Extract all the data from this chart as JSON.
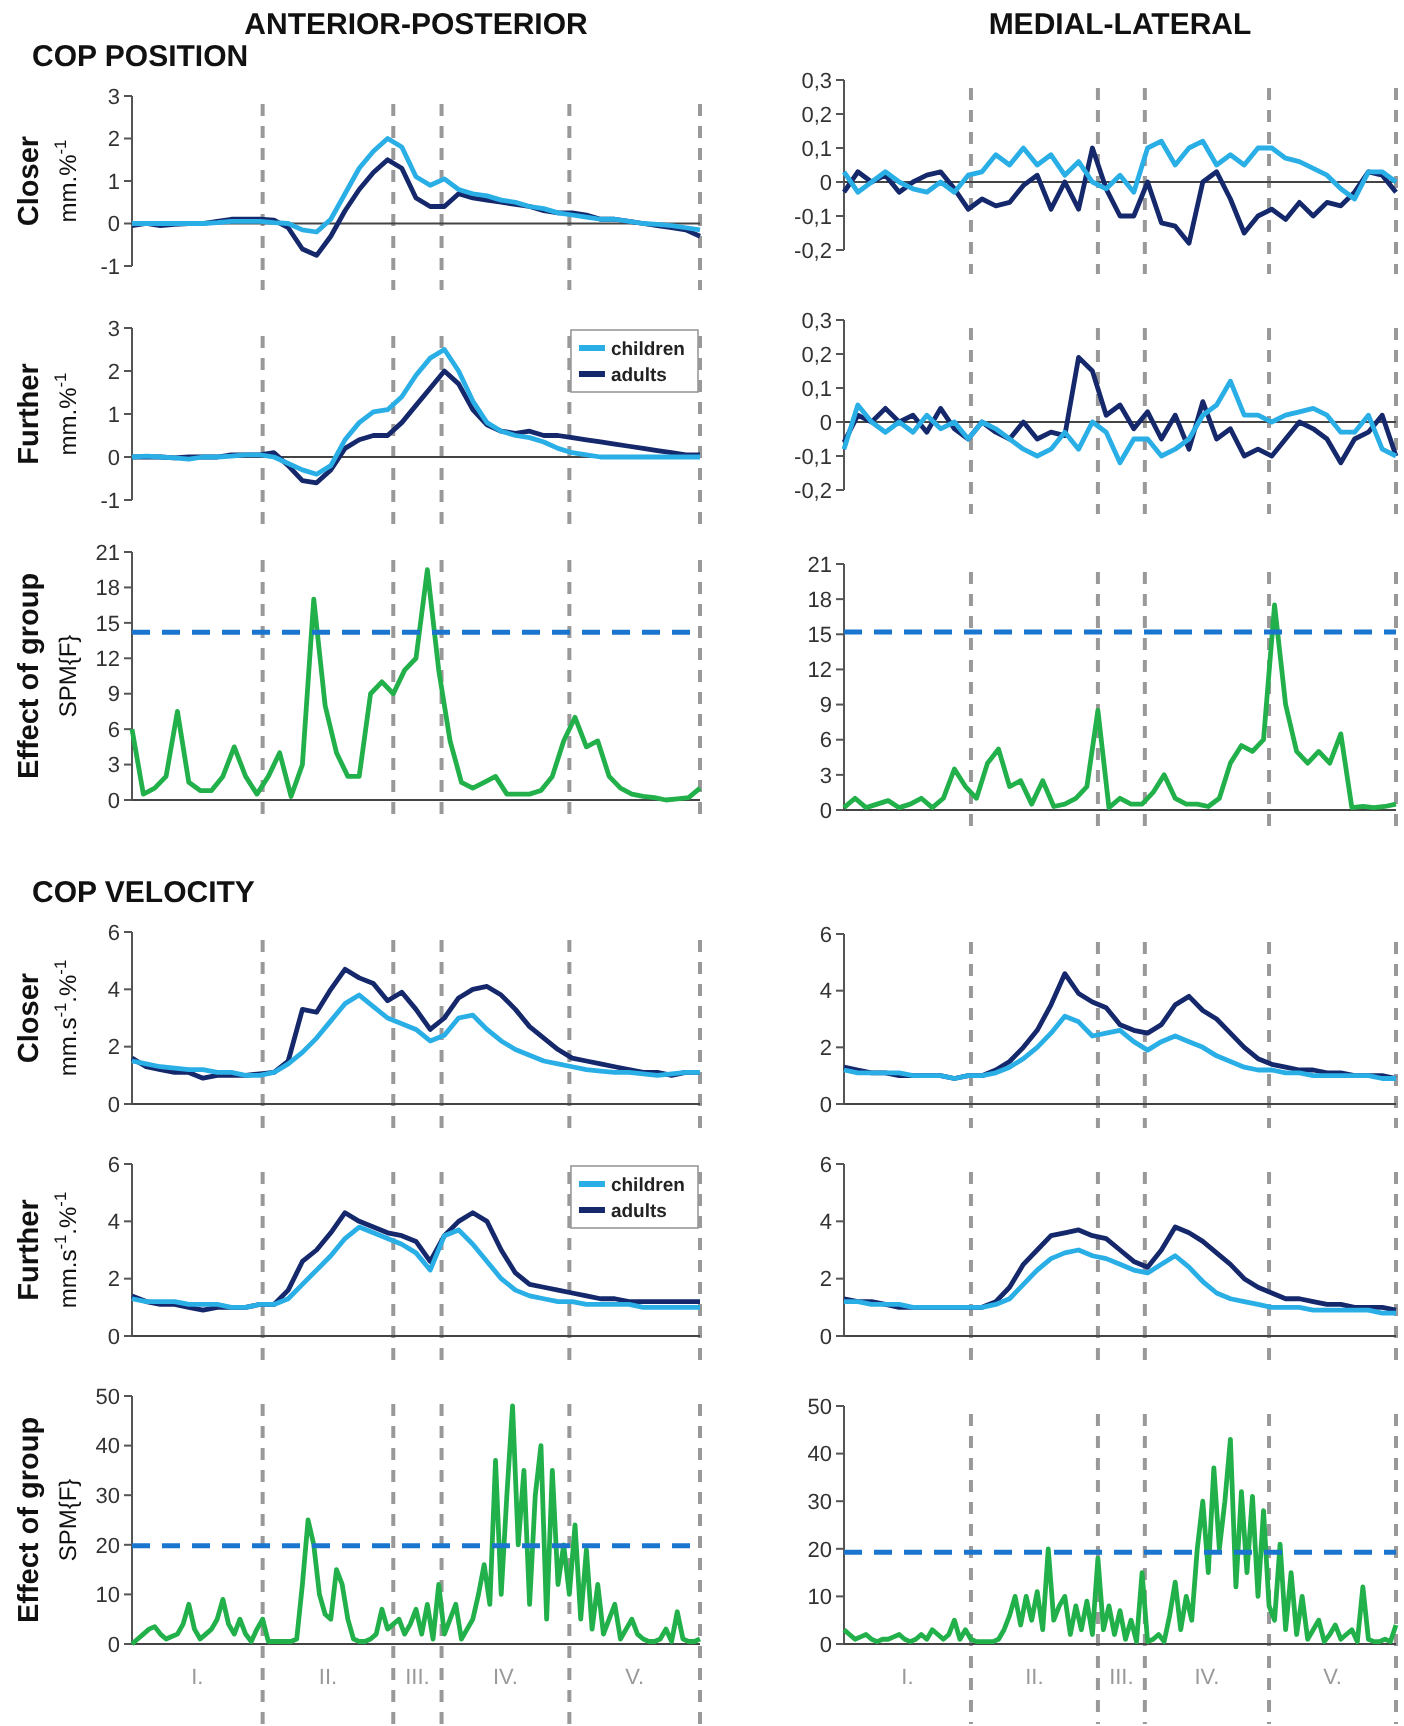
{
  "chart_data": [
    {
      "type": "line",
      "title": "ANTERIOR-POSTERIOR",
      "subtitle": "COP POSITION",
      "ylabel": "Closer\nmm.%$^{-1}$",
      "ylim": [
        -1,
        3
      ],
      "yticks": [
        -1,
        0,
        1,
        2,
        3
      ],
      "tick_labels": "y",
      "grid": "x",
      "categories": [
        null,
        null,
        null,
        null,
        null,
        null,
        null,
        null,
        null,
        null,
        null,
        null,
        null,
        null,
        null,
        null,
        null,
        null,
        null,
        null,
        null,
        null,
        null,
        null,
        null,
        null,
        null,
        null,
        null,
        null,
        null,
        null,
        null,
        null,
        null,
        null,
        null,
        null,
        null,
        null,
        null
      ],
      "series": [
        {
          "color": "#29aee6",
          "values": [
            0,
            0,
            0,
            0,
            0,
            0,
            0.02,
            0.05,
            0.05,
            0.05,
            0.02,
            0,
            -0.15,
            -0.2,
            0.1,
            0.7,
            1.3,
            1.7,
            2.0,
            1.8,
            1.1,
            0.9,
            1.05,
            0.8,
            0.7,
            0.65,
            0.55,
            0.5,
            0.4,
            0.35,
            0.25,
            0.2,
            0.15,
            0.1,
            0.1,
            0.05,
            0,
            -0.02,
            -0.05,
            -0.1,
            -0.15
          ]
        },
        {
          "color": "#14286b",
          "values": [
            -0.05,
            0,
            -0.05,
            -0.02,
            0,
            0,
            0.05,
            0.1,
            0.1,
            0.1,
            0.08,
            -0.1,
            -0.6,
            -0.75,
            -0.3,
            0.3,
            0.8,
            1.2,
            1.5,
            1.3,
            0.6,
            0.4,
            0.4,
            0.7,
            0.6,
            0.55,
            0.5,
            0.45,
            0.4,
            0.3,
            0.25,
            0.25,
            0.2,
            0.1,
            0.1,
            0.05,
            0,
            -0.05,
            -0.1,
            -0.15,
            -0.3
          ]
        }
      ]
    },
    {
      "type": "line",
      "title": "MEDIAL-LATERAL",
      "ylim": [
        -0.2,
        0.3
      ],
      "yticks": [
        {
          "value": -0.2,
          "label": "-0,2"
        },
        {
          "value": -0.1,
          "label": "-0,1"
        },
        0,
        {
          "value": 0.1,
          "label": "0,1"
        },
        {
          "value": 0.2,
          "label": "0,2"
        },
        {
          "value": 0.3,
          "label": "0,3"
        }
      ],
      "tick_labels": "y",
      "grid": "x",
      "categories": [
        null,
        null,
        null,
        null,
        null,
        null,
        null,
        null,
        null,
        null,
        null,
        null,
        null,
        null,
        null,
        null,
        null,
        null,
        null,
        null,
        null,
        null,
        null,
        null,
        null,
        null,
        null,
        null,
        null,
        null,
        null,
        null,
        null,
        null,
        null,
        null,
        null,
        null,
        null,
        null,
        null
      ],
      "series": [
        {
          "color": "#29aee6",
          "values": [
            0.03,
            -0.03,
            0,
            0.03,
            0,
            -0.02,
            -0.03,
            0,
            -0.03,
            0.02,
            0.03,
            0.08,
            0.05,
            0.1,
            0.05,
            0.08,
            0.02,
            0.06,
            0,
            -0.02,
            0.02,
            -0.03,
            0.1,
            0.12,
            0.05,
            0.1,
            0.12,
            0.05,
            0.08,
            0.05,
            0.1,
            0.1,
            0.07,
            0.06,
            0.04,
            0.02,
            -0.02,
            -0.05,
            0.03,
            0.03,
            0
          ]
        },
        {
          "color": "#14286b",
          "values": [
            -0.03,
            0.03,
            0,
            0.02,
            -0.03,
            0,
            0.02,
            0.03,
            -0.02,
            -0.08,
            -0.05,
            -0.07,
            -0.06,
            -0.01,
            0.02,
            -0.08,
            0,
            -0.08,
            0.1,
            -0.02,
            -0.1,
            -0.1,
            0,
            -0.12,
            -0.13,
            -0.18,
            0,
            0.03,
            -0.05,
            -0.15,
            -0.1,
            -0.08,
            -0.11,
            -0.06,
            -0.1,
            -0.06,
            -0.07,
            -0.03,
            0.03,
            0.02,
            -0.03
          ]
        }
      ]
    },
    {
      "type": "line",
      "ylabel": "Further\nmm.%$^{-1}$",
      "legend": "top right",
      "ylim": [
        -1,
        3
      ],
      "yticks": [
        -1,
        0,
        1,
        2,
        3
      ],
      "tick_labels": "y",
      "grid": "x",
      "categories": [
        null,
        null,
        null,
        null,
        null,
        null,
        null,
        null,
        null,
        null,
        null,
        null,
        null,
        null,
        null,
        null,
        null,
        null,
        null,
        null,
        null,
        null,
        null,
        null,
        null,
        null,
        null,
        null,
        null,
        null,
        null,
        null,
        null,
        null,
        null,
        null,
        null,
        null,
        null,
        null,
        null
      ],
      "series": [
        {
          "name": "children",
          "color": "#29aee6",
          "values": [
            0,
            0.02,
            0,
            -0.02,
            -0.05,
            0,
            0,
            0.02,
            0.05,
            0.05,
            0,
            -0.15,
            -0.3,
            -0.4,
            -0.2,
            0.4,
            0.8,
            1.05,
            1.1,
            1.4,
            1.9,
            2.3,
            2.5,
            2.0,
            1.3,
            0.8,
            0.6,
            0.5,
            0.45,
            0.35,
            0.2,
            0.1,
            0.05,
            0,
            0,
            0,
            0,
            0,
            0,
            0,
            0
          ]
        },
        {
          "name": "adults",
          "color": "#14286b",
          "values": [
            0,
            0,
            0,
            -0.02,
            0,
            0,
            0,
            0.05,
            0.05,
            0.05,
            0.1,
            -0.2,
            -0.55,
            -0.6,
            -0.3,
            0.2,
            0.4,
            0.5,
            0.5,
            0.8,
            1.2,
            1.6,
            2.0,
            1.7,
            1.1,
            0.75,
            0.6,
            0.55,
            0.6,
            0.5,
            0.5,
            0.45,
            0.4,
            0.35,
            0.3,
            0.25,
            0.2,
            0.15,
            0.1,
            0.05,
            0.05
          ]
        }
      ]
    },
    {
      "type": "line",
      "ylim": [
        -0.2,
        0.3
      ],
      "yticks": [
        {
          "value": -0.2,
          "label": "-0,2"
        },
        {
          "value": -0.1,
          "label": "-0,1"
        },
        0,
        {
          "value": 0.1,
          "label": "0,1"
        },
        {
          "value": 0.2,
          "label": "0,2"
        },
        {
          "value": 0.3,
          "label": "0,3"
        }
      ],
      "tick_labels": "y",
      "grid": "x",
      "categories": [
        null,
        null,
        null,
        null,
        null,
        null,
        null,
        null,
        null,
        null,
        null,
        null,
        null,
        null,
        null,
        null,
        null,
        null,
        null,
        null,
        null,
        null,
        null,
        null,
        null,
        null,
        null,
        null,
        null,
        null,
        null,
        null,
        null,
        null,
        null,
        null,
        null,
        null,
        null,
        null,
        null
      ],
      "series": [
        {
          "color": "#29aee6",
          "values": [
            -0.08,
            0.05,
            0,
            -0.03,
            0,
            -0.03,
            0.02,
            -0.02,
            0,
            -0.05,
            0,
            -0.02,
            -0.05,
            -0.08,
            -0.1,
            -0.08,
            -0.03,
            -0.08,
            0,
            -0.03,
            -0.12,
            -0.05,
            -0.05,
            -0.1,
            -0.08,
            -0.05,
            0.02,
            0.05,
            0.12,
            0.02,
            0.02,
            0,
            0.02,
            0.03,
            0.04,
            0.02,
            -0.03,
            -0.03,
            0.02,
            -0.08,
            -0.1
          ]
        },
        {
          "color": "#14286b",
          "values": [
            -0.06,
            0.02,
            0,
            0.04,
            0,
            0.02,
            -0.03,
            0.04,
            -0.02,
            -0.05,
            0,
            -0.03,
            -0.05,
            0,
            -0.05,
            -0.03,
            -0.04,
            0.19,
            0.15,
            0.02,
            0.05,
            -0.02,
            0.03,
            -0.05,
            0.02,
            -0.08,
            0.06,
            -0.05,
            -0.02,
            -0.1,
            -0.08,
            -0.1,
            -0.05,
            0,
            -0.02,
            -0.05,
            -0.12,
            -0.05,
            -0.03,
            0.02,
            -0.1
          ]
        }
      ]
    },
    {
      "type": "line",
      "ylabel": "Effect of group\nSPM{F}",
      "ylim": [
        0,
        21
      ],
      "yticks": [
        0,
        3,
        6,
        9,
        12,
        15,
        18,
        21
      ],
      "tick_labels": "y",
      "grid": "x",
      "categories": [
        null,
        null,
        null,
        null,
        null,
        null,
        null,
        null,
        null,
        null,
        null,
        null,
        null,
        null,
        null,
        null,
        null,
        null,
        null,
        null,
        null,
        null,
        null,
        null,
        null,
        null,
        null,
        null,
        null,
        null,
        null,
        null,
        null,
        null,
        null,
        null,
        null,
        null,
        null,
        null,
        null,
        null,
        null,
        null,
        null,
        null,
        null,
        null,
        null,
        null,
        null
      ],
      "series": [
        {
          "color": "#22b04a",
          "values": [
            6,
            0.5,
            1,
            2,
            7.5,
            1.5,
            0.8,
            0.8,
            2,
            4.5,
            2,
            0.5,
            2,
            4,
            0.3,
            3,
            17,
            8,
            4,
            2,
            2,
            9,
            10,
            9,
            11,
            12,
            19.5,
            11,
            5,
            1.5,
            1,
            1.5,
            2,
            0.5,
            0.5,
            0.5,
            0.8,
            2,
            5,
            7,
            4.5,
            5,
            2,
            1,
            0.5,
            0.3,
            0.2,
            0,
            0.1,
            0.2,
            1
          ]
        }
      ],
      "ref_lines": [
        {
          "axis": "y",
          "value": 14.2,
          "color": "#1a75cf",
          "line_style": "dashed"
        }
      ]
    },
    {
      "type": "line",
      "ylim": [
        0,
        21
      ],
      "yticks": [
        0,
        3,
        6,
        9,
        12,
        15,
        18,
        21
      ],
      "tick_labels": "y",
      "grid": "x",
      "categories": [
        null,
        null,
        null,
        null,
        null,
        null,
        null,
        null,
        null,
        null,
        null,
        null,
        null,
        null,
        null,
        null,
        null,
        null,
        null,
        null,
        null,
        null,
        null,
        null,
        null,
        null,
        null,
        null,
        null,
        null,
        null,
        null,
        null,
        null,
        null,
        null,
        null,
        null,
        null,
        null,
        null,
        null,
        null,
        null,
        null,
        null,
        null,
        null,
        null,
        null,
        null
      ],
      "series": [
        {
          "color": "#22b04a",
          "values": [
            0.2,
            1,
            0.2,
            0.5,
            0.8,
            0.2,
            0.5,
            1,
            0.2,
            1,
            3.5,
            2,
            1,
            4,
            5.2,
            2,
            2.5,
            0.5,
            2.5,
            0.3,
            0.5,
            1,
            2,
            8.5,
            0.2,
            1,
            0.5,
            0.5,
            1.5,
            3,
            1,
            0.5,
            0.5,
            0.3,
            1,
            4,
            5.5,
            5,
            6,
            17.5,
            9,
            5,
            4,
            5,
            4,
            6.5,
            0.2,
            0.3,
            0.2,
            0.3,
            0.5
          ]
        }
      ],
      "ref_lines": [
        {
          "axis": "y",
          "value": 15.2,
          "color": "#1a75cf",
          "line_style": "dashed"
        }
      ]
    },
    {
      "type": "line",
      "subtitle": "COP VELOCITY",
      "ylabel": "Closer\nmm.s$^{-1}$.%$^{-1}$",
      "ylim": [
        0,
        6
      ],
      "yticks": [
        0,
        2,
        4,
        6
      ],
      "tick_labels": "y",
      "grid": "x",
      "categories": [
        null,
        null,
        null,
        null,
        null,
        null,
        null,
        null,
        null,
        null,
        null,
        null,
        null,
        null,
        null,
        null,
        null,
        null,
        null,
        null,
        null,
        null,
        null,
        null,
        null,
        null,
        null,
        null,
        null,
        null,
        null,
        null,
        null,
        null,
        null,
        null,
        null,
        null,
        null,
        null,
        null
      ],
      "series": [
        {
          "color": "#29aee6",
          "values": [
            1.5,
            1.4,
            1.3,
            1.25,
            1.2,
            1.2,
            1.1,
            1.1,
            1.0,
            1.0,
            1.1,
            1.4,
            1.8,
            2.3,
            2.9,
            3.5,
            3.8,
            3.4,
            3.0,
            2.8,
            2.6,
            2.2,
            2.4,
            3.0,
            3.1,
            2.6,
            2.2,
            1.9,
            1.7,
            1.5,
            1.4,
            1.3,
            1.2,
            1.15,
            1.1,
            1.1,
            1.05,
            1.0,
            1.05,
            1.1,
            1.1
          ]
        },
        {
          "color": "#14286b",
          "values": [
            1.6,
            1.3,
            1.2,
            1.1,
            1.1,
            0.9,
            1.0,
            1.0,
            1.0,
            1.05,
            1.1,
            1.5,
            3.3,
            3.2,
            4.0,
            4.7,
            4.4,
            4.2,
            3.6,
            3.9,
            3.3,
            2.6,
            3.0,
            3.7,
            4.0,
            4.1,
            3.8,
            3.3,
            2.7,
            2.3,
            1.9,
            1.6,
            1.5,
            1.4,
            1.3,
            1.2,
            1.1,
            1.1,
            1.0,
            1.1,
            1.1
          ]
        }
      ]
    },
    {
      "type": "line",
      "ylim": [
        0,
        6
      ],
      "yticks": [
        0,
        2,
        4,
        6
      ],
      "tick_labels": "y",
      "grid": "x",
      "categories": [
        null,
        null,
        null,
        null,
        null,
        null,
        null,
        null,
        null,
        null,
        null,
        null,
        null,
        null,
        null,
        null,
        null,
        null,
        null,
        null,
        null,
        null,
        null,
        null,
        null,
        null,
        null,
        null,
        null,
        null,
        null,
        null,
        null,
        null,
        null,
        null,
        null,
        null,
        null,
        null,
        null
      ],
      "series": [
        {
          "color": "#29aee6",
          "values": [
            1.2,
            1.1,
            1.1,
            1.1,
            1.1,
            1.0,
            1.0,
            1.0,
            0.9,
            1.0,
            1.0,
            1.1,
            1.3,
            1.6,
            2.0,
            2.5,
            3.1,
            2.9,
            2.4,
            2.5,
            2.6,
            2.2,
            1.9,
            2.2,
            2.4,
            2.2,
            2.0,
            1.7,
            1.5,
            1.3,
            1.2,
            1.2,
            1.1,
            1.1,
            1.0,
            1.0,
            1.0,
            1.0,
            1.0,
            0.9,
            0.9
          ]
        },
        {
          "color": "#14286b",
          "values": [
            1.3,
            1.2,
            1.1,
            1.1,
            1.0,
            1.0,
            1.0,
            1.0,
            0.9,
            1.0,
            1.0,
            1.2,
            1.5,
            2.0,
            2.6,
            3.5,
            4.6,
            3.9,
            3.6,
            3.4,
            2.8,
            2.6,
            2.5,
            2.8,
            3.5,
            3.8,
            3.3,
            3.0,
            2.5,
            2.0,
            1.6,
            1.4,
            1.3,
            1.2,
            1.2,
            1.1,
            1.1,
            1.0,
            1.0,
            1.0,
            0.9
          ]
        }
      ]
    },
    {
      "type": "line",
      "ylabel": "Further\nmm.s$^{-1}$.%$^{-1}$",
      "legend": "top right",
      "ylim": [
        0,
        6
      ],
      "yticks": [
        0,
        2,
        4,
        6
      ],
      "tick_labels": "y",
      "grid": "x",
      "categories": [
        null,
        null,
        null,
        null,
        null,
        null,
        null,
        null,
        null,
        null,
        null,
        null,
        null,
        null,
        null,
        null,
        null,
        null,
        null,
        null,
        null,
        null,
        null,
        null,
        null,
        null,
        null,
        null,
        null,
        null,
        null,
        null,
        null,
        null,
        null,
        null,
        null,
        null,
        null,
        null,
        null
      ],
      "series": [
        {
          "name": "children",
          "color": "#29aee6",
          "values": [
            1.3,
            1.2,
            1.2,
            1.2,
            1.1,
            1.1,
            1.1,
            1.0,
            1.0,
            1.1,
            1.1,
            1.3,
            1.8,
            2.3,
            2.8,
            3.4,
            3.8,
            3.6,
            3.4,
            3.2,
            2.9,
            2.3,
            3.5,
            3.7,
            3.2,
            2.6,
            2.0,
            1.6,
            1.4,
            1.3,
            1.2,
            1.2,
            1.1,
            1.1,
            1.1,
            1.1,
            1.0,
            1.0,
            1.0,
            1.0,
            1.0
          ]
        },
        {
          "name": "adults",
          "color": "#14286b",
          "values": [
            1.4,
            1.2,
            1.1,
            1.1,
            1.0,
            0.9,
            1.0,
            1.0,
            1.0,
            1.1,
            1.1,
            1.6,
            2.6,
            3.0,
            3.6,
            4.3,
            4.0,
            3.8,
            3.6,
            3.5,
            3.3,
            2.6,
            3.5,
            4.0,
            4.3,
            4.0,
            3.0,
            2.2,
            1.8,
            1.7,
            1.6,
            1.5,
            1.4,
            1.3,
            1.3,
            1.2,
            1.2,
            1.2,
            1.2,
            1.2,
            1.2
          ]
        }
      ]
    },
    {
      "type": "line",
      "ylim": [
        0,
        6
      ],
      "yticks": [
        0,
        2,
        4,
        6
      ],
      "tick_labels": "y",
      "grid": "x",
      "categories": [
        null,
        null,
        null,
        null,
        null,
        null,
        null,
        null,
        null,
        null,
        null,
        null,
        null,
        null,
        null,
        null,
        null,
        null,
        null,
        null,
        null,
        null,
        null,
        null,
        null,
        null,
        null,
        null,
        null,
        null,
        null,
        null,
        null,
        null,
        null,
        null,
        null,
        null,
        null,
        null,
        null
      ],
      "series": [
        {
          "color": "#29aee6",
          "values": [
            1.2,
            1.2,
            1.1,
            1.1,
            1.1,
            1.0,
            1.0,
            1.0,
            1.0,
            1.0,
            1.0,
            1.1,
            1.3,
            1.8,
            2.3,
            2.7,
            2.9,
            3.0,
            2.8,
            2.7,
            2.5,
            2.3,
            2.2,
            2.5,
            2.8,
            2.4,
            1.9,
            1.5,
            1.3,
            1.2,
            1.1,
            1.0,
            1.0,
            1.0,
            0.9,
            0.9,
            0.9,
            0.9,
            0.9,
            0.8,
            0.8
          ]
        },
        {
          "color": "#14286b",
          "values": [
            1.3,
            1.2,
            1.2,
            1.1,
            1.0,
            1.0,
            1.0,
            1.0,
            1.0,
            1.0,
            1.0,
            1.2,
            1.7,
            2.5,
            3.0,
            3.5,
            3.6,
            3.7,
            3.5,
            3.4,
            3.0,
            2.6,
            2.4,
            3.0,
            3.8,
            3.6,
            3.3,
            2.9,
            2.5,
            2.0,
            1.7,
            1.5,
            1.3,
            1.3,
            1.2,
            1.1,
            1.1,
            1.0,
            1.0,
            1.0,
            0.9
          ]
        }
      ]
    },
    {
      "type": "line",
      "ylabel": "Effect of group\nSPM{F}",
      "ylim": [
        0,
        50
      ],
      "yticks": [
        0,
        10,
        20,
        30,
        40,
        50
      ],
      "tick_labels": "y",
      "grid": "x",
      "categories": [
        null,
        null,
        null,
        null,
        null,
        null,
        null,
        null,
        null,
        null,
        null,
        null,
        null,
        null,
        null,
        null,
        null,
        null,
        null,
        null,
        null,
        null,
        null,
        null,
        null,
        null,
        null,
        null,
        null,
        null,
        null,
        null,
        null,
        null,
        null,
        null,
        null,
        null,
        null,
        null,
        null,
        null,
        null,
        null,
        null,
        null,
        null,
        null,
        null,
        null,
        null,
        null,
        null,
        null,
        null,
        null,
        null,
        null,
        null,
        null,
        null,
        null,
        null,
        null,
        null,
        null,
        null,
        null,
        null,
        null,
        null,
        null,
        null,
        null,
        null,
        null,
        null,
        null,
        null,
        null,
        null,
        null,
        null,
        null,
        null,
        null,
        null,
        null,
        null,
        null,
        null,
        null,
        null,
        null,
        null,
        null,
        null,
        null,
        null,
        null,
        null
      ],
      "series": [
        {
          "color": "#22b04a",
          "values": [
            0,
            1,
            2,
            3,
            3.5,
            2,
            1,
            1.5,
            2,
            4,
            8,
            3,
            1,
            2,
            3,
            5,
            9,
            4,
            2,
            5,
            2,
            0.5,
            3,
            5,
            0.5,
            0.5,
            0.5,
            0.5,
            0.5,
            1,
            12,
            25,
            20,
            10,
            6,
            5,
            15,
            12,
            5,
            1,
            0.5,
            0.5,
            1,
            2,
            7,
            3,
            4,
            5,
            2,
            4,
            7,
            2,
            8,
            1,
            12,
            2,
            5,
            8,
            1,
            3,
            5,
            10,
            16,
            8,
            37,
            10,
            30,
            48,
            20,
            35,
            8,
            30,
            40,
            5,
            35,
            12,
            20,
            10,
            24,
            5,
            19,
            3,
            12,
            2,
            5,
            8,
            1,
            3,
            5,
            2,
            1,
            0.5,
            0.5,
            1,
            3,
            0.5,
            6.5,
            1,
            0.5,
            0.5,
            1
          ]
        }
      ],
      "ref_lines": [
        {
          "axis": "y",
          "value": 19.8,
          "color": "#1a75cf",
          "line_style": "dashed"
        }
      ],
      "annotations": [
        "I.",
        "II.",
        "III.",
        "IV.",
        "V."
      ]
    },
    {
      "type": "line",
      "ylim": [
        0,
        50
      ],
      "yticks": [
        0,
        10,
        20,
        30,
        40,
        50
      ],
      "tick_labels": "y",
      "grid": "x",
      "categories": [
        null,
        null,
        null,
        null,
        null,
        null,
        null,
        null,
        null,
        null,
        null,
        null,
        null,
        null,
        null,
        null,
        null,
        null,
        null,
        null,
        null,
        null,
        null,
        null,
        null,
        null,
        null,
        null,
        null,
        null,
        null,
        null,
        null,
        null,
        null,
        null,
        null,
        null,
        null,
        null,
        null,
        null,
        null,
        null,
        null,
        null,
        null,
        null,
        null,
        null,
        null,
        null,
        null,
        null,
        null,
        null,
        null,
        null,
        null,
        null,
        null,
        null,
        null,
        null,
        null,
        null,
        null,
        null,
        null,
        null,
        null,
        null,
        null,
        null,
        null,
        null,
        null,
        null,
        null,
        null,
        null,
        null,
        null,
        null,
        null,
        null,
        null,
        null,
        null,
        null,
        null,
        null,
        null,
        null,
        null,
        null,
        null,
        null,
        null,
        null,
        null
      ],
      "series": [
        {
          "color": "#22b04a",
          "values": [
            3,
            2,
            1,
            1.5,
            2,
            1,
            0.5,
            1,
            1,
            1.5,
            2,
            1,
            0.5,
            1,
            2,
            1,
            3,
            2,
            1,
            2,
            5,
            1,
            3,
            1,
            0.5,
            0.5,
            0.5,
            0.5,
            1,
            3,
            6,
            10,
            4,
            10,
            5,
            11,
            3,
            20,
            5,
            8,
            10,
            2,
            8,
            3,
            9,
            2,
            18,
            3,
            8,
            2,
            7,
            1,
            5,
            0.5,
            15,
            0.5,
            1,
            2,
            0.5,
            6,
            13,
            3,
            10,
            5,
            20,
            30,
            15,
            37,
            20,
            30,
            43,
            12,
            32,
            15,
            31,
            10,
            28,
            8,
            5,
            21,
            3,
            15,
            2,
            10,
            1,
            3,
            5,
            0.5,
            2,
            4,
            1,
            2,
            3,
            0.5,
            12,
            1,
            0.5,
            0.5,
            1,
            0.5,
            4
          ]
        }
      ],
      "ref_lines": [
        {
          "axis": "y",
          "value": 19.3,
          "color": "#1a75cf",
          "line_style": "dashed"
        }
      ],
      "annotations": [
        "I.",
        "II.",
        "III.",
        "IV.",
        "V."
      ]
    }
  ]
}
